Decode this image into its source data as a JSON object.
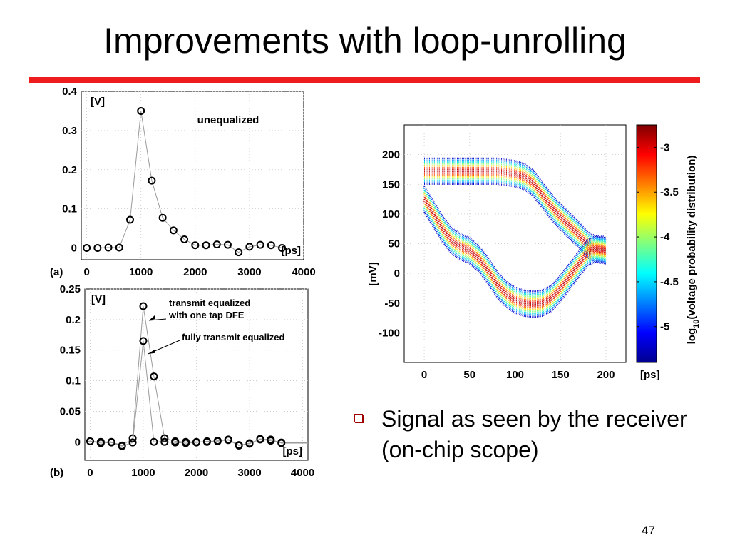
{
  "slide": {
    "title": "Improvements with loop-unrolling",
    "bullet": "Signal as seen by the receiver (on-chip scope)",
    "page_number": "47",
    "accent_color": "#ee1c1c"
  },
  "chart_data": [
    {
      "id": "a",
      "type": "scatter",
      "panel_label": "(a)",
      "unit_y": "[V]",
      "unit_x": "[ps]",
      "annotation": "unequalized",
      "xlim": [
        -100,
        4000
      ],
      "ylim": [
        -0.03,
        0.4
      ],
      "xticks": [
        0,
        1000,
        2000,
        3000,
        4000
      ],
      "xtick_labels": [
        "0",
        "1000",
        "2000",
        "3000",
        "4000"
      ],
      "yticks": [
        0,
        0.1,
        0.2,
        0.3,
        0.4
      ],
      "ytick_labels": [
        "0",
        "0.1",
        "0.2",
        "0.3",
        "0.4"
      ],
      "grid": true,
      "series": [
        {
          "marker": "circle",
          "x": [
            0,
            200,
            400,
            600,
            800,
            1000,
            1200,
            1400,
            1600,
            1800,
            2000,
            2200,
            2400,
            2600,
            2800,
            3000,
            3200,
            3400,
            3600
          ],
          "y": [
            0.0,
            0.0,
            0.001,
            0.001,
            0.072,
            0.35,
            0.172,
            0.077,
            0.045,
            0.022,
            0.007,
            0.007,
            0.009,
            0.008,
            -0.011,
            0.003,
            0.008,
            0.007,
            0.0
          ]
        }
      ]
    },
    {
      "id": "b",
      "type": "scatter",
      "panel_label": "(b)",
      "unit_y": "[V]",
      "unit_x": "[ps]",
      "annotations": [
        "transmit equalized with one tap DFE",
        "fully transmit equalized"
      ],
      "xlim": [
        -100,
        4100
      ],
      "ylim": [
        -0.03,
        0.25
      ],
      "xticks": [
        0,
        1000,
        2000,
        3000,
        4000
      ],
      "xtick_labels": [
        "0",
        "1000",
        "2000",
        "3000",
        "4000"
      ],
      "yticks": [
        0,
        0.05,
        0.1,
        0.15,
        0.2,
        0.25
      ],
      "ytick_labels": [
        "0",
        "0.05",
        "0.1",
        "0.15",
        "0.2",
        "0.25"
      ],
      "grid": true,
      "series": [
        {
          "marker": "circle",
          "x": [
            0,
            200,
            400,
            600,
            800,
            1000,
            1200,
            1400,
            1600,
            1800,
            2000,
            2200,
            2400,
            2600,
            2800,
            3000,
            3200,
            3400,
            3600
          ],
          "y": [
            0.001,
            0.0,
            0.0,
            -0.006,
            0.006,
            0.222,
            0.107,
            0.006,
            0.001,
            0.0,
            0.0,
            0.0,
            0.002,
            0.003,
            -0.006,
            -0.002,
            0.004,
            0.002,
            -0.001
          ]
        },
        {
          "marker": "circle",
          "x": [
            0,
            200,
            400,
            600,
            800,
            1000,
            1200,
            1400,
            1600,
            1800,
            2000,
            2200,
            2400,
            2600,
            2800,
            3000,
            3200,
            3400,
            3600
          ],
          "y": [
            0.001,
            -0.002,
            -0.001,
            -0.007,
            -0.001,
            0.165,
            0.0,
            0.0,
            -0.001,
            -0.002,
            -0.001,
            0.001,
            0.001,
            0.004,
            -0.005,
            -0.003,
            0.005,
            0.004,
            -0.002
          ]
        }
      ]
    },
    {
      "id": "scope",
      "type": "heatmap",
      "unit_y": "[mV]",
      "unit_x": "[ps]",
      "xlim": [
        -22,
        222
      ],
      "ylim": [
        -150,
        250
      ],
      "xticks": [
        0,
        50,
        100,
        150,
        200
      ],
      "xtick_labels": [
        "0",
        "50",
        "100",
        "150",
        "200"
      ],
      "yticks": [
        -100,
        -50,
        0,
        50,
        100,
        150,
        200
      ],
      "ytick_labels": [
        "-100",
        "-50",
        "0",
        "50",
        "100",
        "150",
        "200"
      ],
      "grid": true,
      "eye_traces": [
        {
          "name": "upper",
          "x": [
            0,
            10,
            20,
            30,
            40,
            50,
            60,
            70,
            80,
            90,
            100,
            110,
            120,
            130,
            140,
            150,
            160,
            170,
            180,
            190,
            200
          ],
          "y": [
            172,
            172,
            172,
            172,
            172,
            172,
            172,
            172,
            172,
            170,
            168,
            163,
            152,
            132,
            112,
            95,
            80,
            65,
            48,
            40,
            38
          ]
        },
        {
          "name": "lower",
          "x": [
            0,
            10,
            20,
            30,
            40,
            50,
            60,
            70,
            80,
            90,
            100,
            110,
            120,
            130,
            140,
            150,
            160,
            170,
            180,
            190,
            200
          ],
          "y": [
            125,
            100,
            75,
            55,
            45,
            38,
            25,
            5,
            -18,
            -35,
            -45,
            -50,
            -52,
            -50,
            -42,
            -25,
            -5,
            15,
            35,
            42,
            40
          ]
        }
      ],
      "colorbar": {
        "label": "log10(voltage probability distribution)",
        "label_main": "log",
        "label_sub": "10",
        "label_rest": "(voltage probability distribution)",
        "range": [
          -5.4,
          -2.75
        ],
        "ticks": [
          -3,
          -3.5,
          -4,
          -4.5,
          -5
        ],
        "tick_labels": [
          "-3",
          "-3.5",
          "-4",
          "-4.5",
          "-5"
        ],
        "colormap": "jet"
      }
    }
  ]
}
